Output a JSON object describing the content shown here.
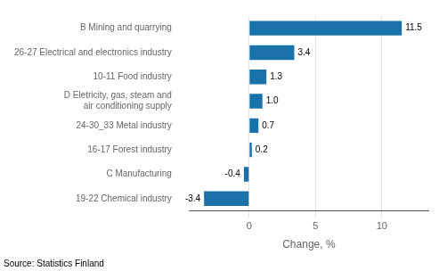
{
  "chart_data": {
    "type": "bar",
    "orientation": "horizontal",
    "categories": [
      "19-22 Chemical industry",
      "C Manufacturing",
      "16-17 Forest industry",
      "24-30_33 Metal industry",
      "D Eletricity, gas, steam and\nair conditioning supply",
      "10-11 Food industry",
      "26-27 Electrical and electronics industry",
      "B Mining and quarrying"
    ],
    "values": [
      -3.4,
      -0.4,
      0.2,
      0.7,
      1.0,
      1.3,
      3.4,
      11.5
    ],
    "value_labels": [
      "-3.4",
      "-0.4",
      "0.2",
      "0.7",
      "1.0",
      "1.3",
      "3.4",
      "11.5"
    ],
    "data_labels": true,
    "color": "#1a72a8",
    "xlabel": "Change, %",
    "xlim": [
      -4.5,
      13.5
    ],
    "xticks": [
      0,
      5,
      10
    ],
    "grid": true,
    "annotations": [
      "Source: Statistics Finland"
    ]
  }
}
